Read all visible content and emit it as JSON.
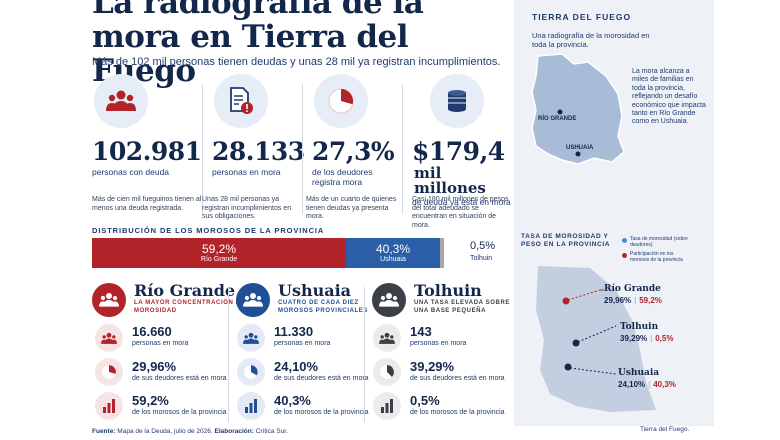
{
  "header": {
    "title": "La radiografía de la mora en Tierra del Fuego",
    "subtitle": "Más de 102 mil personas tienen deudas y unas 28 mil ya registran incumplimientos."
  },
  "kpis": [
    {
      "value": "102.981",
      "value_sub": "",
      "label": "personas con deuda",
      "desc": "Más de cien mil fueguinos tienen al menos una deuda registrada.",
      "icon": "people-icon"
    },
    {
      "value": "28.133",
      "value_sub": "",
      "label": "personas en mora",
      "desc": "Unas 28 mil personas ya registran incumplimientos en sus obligaciones.",
      "icon": "document-alert-icon"
    },
    {
      "value": "27,3%",
      "value_sub": "",
      "label": "de los deudores registra mora",
      "desc": "Más de un cuarto de quienes tienen deudas ya presenta mora.",
      "icon": "pie-icon"
    },
    {
      "value": "$179,4",
      "value_sub": "mil millones",
      "label": "de deuda ya está en mora",
      "desc": "Casi 180 mil millones de pesos del total adeudado se encuentran en situación de mora.",
      "icon": "coins-icon"
    }
  ],
  "map_panel": {
    "title": "TIERRA DEL FUEGO",
    "subtitle": "Una radiografía de la morosidad en toda la provincia.",
    "note": "La mora alcanza a miles de familias en toda la provincia, reflejando un desafío económico que impacta tanto en Río Grande como en Ushuaia.",
    "city_rio": "RÍO GRANDE",
    "city_ush": "USHUAIA"
  },
  "distribution": {
    "title": "DISTRIBUCIÓN DE LOS MOROSOS DE LA PROVINCIA",
    "segments": [
      {
        "pct": "59,2%",
        "name": "Río Grande",
        "value": 59.2,
        "color": "#b3232a"
      },
      {
        "pct": "40,3%",
        "name": "Ushuaia",
        "value": 40.3,
        "color": "#2a5fa8"
      },
      {
        "pct": "0,5%",
        "name": "Tolhuin",
        "value": 0.5,
        "color": "#a8a8a8"
      }
    ]
  },
  "cities": [
    {
      "name": "Río Grande",
      "sub": "LA MAYOR CONCENTRACIÓN DE MOROSIDAD",
      "accent": "#b3232a",
      "tint": "#f6e4e4",
      "stats": [
        {
          "value": "16.660",
          "label": "personas en mora"
        },
        {
          "value": "29,96%",
          "label": "de sus deudores está en mora"
        },
        {
          "value": "59,2%",
          "label": "de los morosos de la provincia"
        }
      ]
    },
    {
      "name": "Ushuaia",
      "sub": "CUATRO DE CADA DIEZ MOROSOS PROVINCIALES",
      "accent": "#1f4f96",
      "tint": "#e3eaf5",
      "stats": [
        {
          "value": "11.330",
          "label": "personas en mora"
        },
        {
          "value": "24,10%",
          "label": "de sus deudores está en mora"
        },
        {
          "value": "40,3%",
          "label": "de los morosos de la provincia"
        }
      ]
    },
    {
      "name": "Tolhuin",
      "sub": "UNA TASA ELEVADA SOBRE UNA BASE PEQUEÑA",
      "accent": "#3b3f46",
      "tint": "#ebebeb",
      "stats": [
        {
          "value": "143",
          "label": "personas en mora"
        },
        {
          "value": "39,29%",
          "label": "de sus deudores está en mora"
        },
        {
          "value": "0,5%",
          "label": "de los morosos de la provincia"
        }
      ]
    }
  ],
  "rate_panel": {
    "title": "TASA DE MOROSIDAD Y PESO EN LA PROVINCIA",
    "legend_rate": "Tasa de morosidad (sobre deudores)",
    "legend_share": "Participación en los morosos de la provincia",
    "cities": [
      {
        "name": "Río Grande",
        "rate": "29,96%",
        "share": "59,2%"
      },
      {
        "name": "Tolhuin",
        "rate": "39,29%",
        "share": "0,5%"
      },
      {
        "name": "Ushuaia",
        "rate": "24,10%",
        "share": "40,3%"
      }
    ]
  },
  "footer": {
    "source_label": "Fuente:",
    "source": "Mapa de la Deuda, julio de 2026.",
    "elab_label": "Elaboración:",
    "elab": "Crítica Sur.",
    "credit": "Tierra del Fuego."
  }
}
